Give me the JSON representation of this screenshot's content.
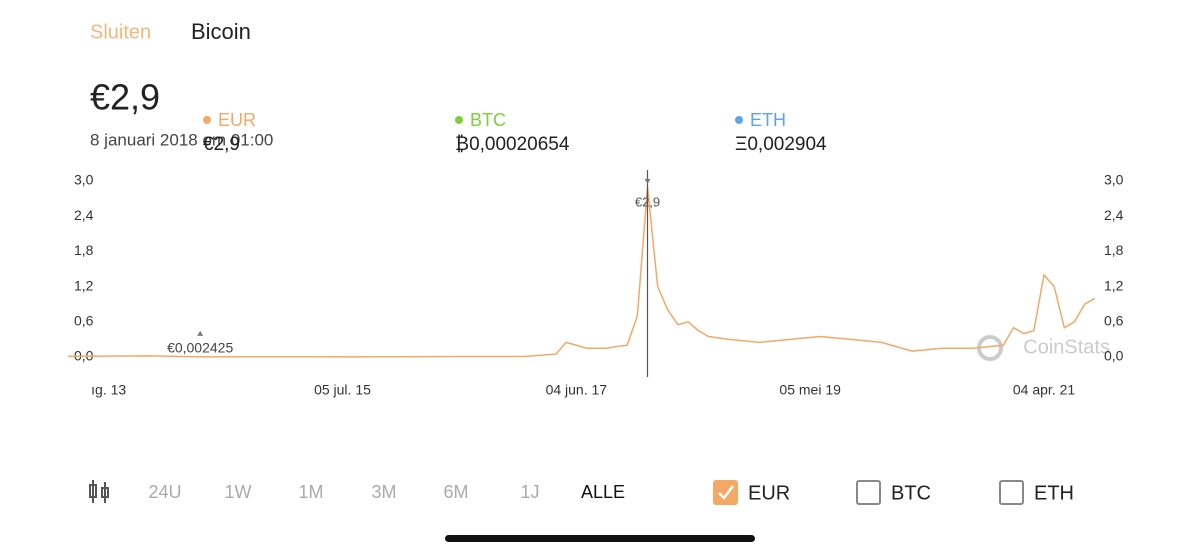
{
  "tabs": [
    "Sluiten",
    "Bicoin"
  ],
  "price": "€2,9",
  "date": "8 januari 2018 om 01:00",
  "legend": [
    {
      "name": "EUR",
      "color": "#f2a965",
      "value": "€2,9"
    },
    {
      "name": "BTC",
      "color": "#7ccf3a",
      "value": "₿0,00020654"
    },
    {
      "name": "ETH",
      "color": "#5fa3ea",
      "value": "Ξ0,002904"
    }
  ],
  "watermark": "CoinStats",
  "ranges": [
    "24U",
    "1W",
    "1M",
    "3M",
    "6M",
    "1J",
    "ALLE"
  ],
  "active_range": "ALLE",
  "toggles": [
    {
      "name": "EUR",
      "checked": true
    },
    {
      "name": "BTC",
      "checked": false
    },
    {
      "name": "ETH",
      "checked": false
    }
  ],
  "chart_data": {
    "type": "line",
    "x": [
      "2013-04",
      "2013-08",
      "2013-12",
      "2014-05",
      "2014-10",
      "2015-03",
      "2015-08",
      "2016-01",
      "2016-07",
      "2017-01",
      "2017-04",
      "2017-05",
      "2017-06",
      "2017-07",
      "2017-08",
      "2017-09",
      "2017-10",
      "2017-11",
      "2017-12",
      "2018-01",
      "2018-02",
      "2018-03",
      "2018-04",
      "2018-05",
      "2018-06",
      "2018-07",
      "2018-09",
      "2018-12",
      "2019-03",
      "2019-06",
      "2019-09",
      "2019-12",
      "2020-03",
      "2020-06",
      "2020-09",
      "2020-12",
      "2021-01",
      "2021-02",
      "2021-03",
      "2021-04",
      "2021-05",
      "2021-06",
      "2021-07",
      "2021-08",
      "2021-09"
    ],
    "series": [
      {
        "name": "EUR",
        "color": "#f2a965",
        "values": [
          0.01,
          0.015,
          0.02,
          0.002425,
          0.005,
          0.004,
          0.003,
          0.005,
          0.008,
          0.01,
          0.05,
          0.25,
          0.2,
          0.15,
          0.15,
          0.15,
          0.18,
          0.2,
          0.7,
          2.9,
          1.2,
          0.8,
          0.55,
          0.6,
          0.45,
          0.35,
          0.3,
          0.25,
          0.3,
          0.35,
          0.3,
          0.25,
          0.1,
          0.15,
          0.15,
          0.2,
          0.5,
          0.4,
          0.45,
          1.4,
          1.2,
          0.5,
          0.6,
          0.9,
          1.0
        ]
      }
    ],
    "xlim": [
      "2013-04",
      "2021-10"
    ],
    "xticks": [
      {
        "value": "2013-08",
        "label": "ıg. 13"
      },
      {
        "value": "2015-07",
        "label": "05 jul. 15"
      },
      {
        "value": "2017-06",
        "label": "04 jun. 17"
      },
      {
        "value": "2019-05",
        "label": "05 mei 19"
      },
      {
        "value": "2021-04",
        "label": "04 apr. 21"
      }
    ],
    "ylim": [
      0,
      3.0
    ],
    "yticks": [
      {
        "value": 0,
        "label": "0,0"
      },
      {
        "value": 0.6,
        "label": "0,6"
      },
      {
        "value": 1.2,
        "label": "1,2"
      },
      {
        "value": 1.8,
        "label": "1,8"
      },
      {
        "value": 2.4,
        "label": "2,4"
      },
      {
        "value": 3.0,
        "label": "3,0"
      }
    ],
    "y2lim": [
      0,
      3.0
    ],
    "y2ticks": [
      {
        "value": 0,
        "label": "0,0"
      },
      {
        "value": 0.6,
        "label": "0,6"
      },
      {
        "value": 1.2,
        "label": "1,2"
      },
      {
        "value": 1.8,
        "label": "1,8"
      },
      {
        "value": 2.4,
        "label": "2,4"
      },
      {
        "value": 3.0,
        "label": "3,0"
      }
    ],
    "annotations": [
      {
        "x": "2018-01",
        "value": 2.9,
        "label": "€2,9"
      },
      {
        "x": "2014-05",
        "value": 0.002425,
        "label": "€0,002425"
      }
    ]
  }
}
